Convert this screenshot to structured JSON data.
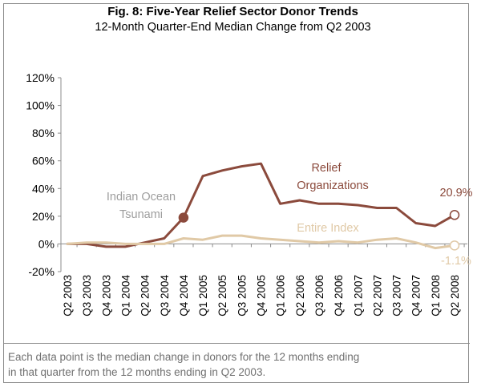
{
  "chart_data": {
    "type": "line",
    "title": "Fig. 8: Five-Year Relief Sector Donor Trends",
    "subtitle": "12-Month Quarter-End Median Change from Q2 2003",
    "x": [
      "Q2 2003",
      "Q3 2003",
      "Q4 2003",
      "Q1 2004",
      "Q2 2004",
      "Q3 2004",
      "Q4 2004",
      "Q1 2005",
      "Q2 2005",
      "Q3 2005",
      "Q4 2005",
      "Q1 2006",
      "Q2 2006",
      "Q3 2006",
      "Q4 2006",
      "Q1 2007",
      "Q2 2007",
      "Q3 2007",
      "Q4 2007",
      "Q1 2008",
      "Q2 2008"
    ],
    "yticks": [
      "120%",
      "100%",
      "80%",
      "60%",
      "40%",
      "20%",
      "0%",
      "-20%"
    ],
    "ylim": [
      -20,
      120
    ],
    "series": [
      {
        "name": "Relief Organizations",
        "color": "#8b4a3c",
        "values": [
          0,
          0,
          -2,
          -2,
          1,
          4,
          19,
          49,
          53,
          56,
          58,
          29,
          31.5,
          29,
          29,
          28,
          26,
          26,
          15,
          13,
          20.9
        ]
      },
      {
        "name": "Entire Index",
        "color": "#e0c9a6",
        "values": [
          0,
          1,
          1,
          0,
          0,
          0,
          4,
          3,
          6,
          6,
          4,
          3,
          2,
          1,
          2,
          1,
          3,
          4,
          1,
          -3,
          -1.1
        ]
      }
    ],
    "annotations": {
      "tsunami_line1": "Indian Ocean",
      "tsunami_line2": "Tsunami",
      "relief_line1": "Relief",
      "relief_line2": "Organizations",
      "relief_end": "20.9%",
      "index_label": "Entire Index",
      "index_end": "-1.1%"
    },
    "annotation_colors": {
      "tsunami": "#9e9e9e",
      "relief": "#8b4a3c",
      "index": "#e0c9a6"
    }
  },
  "footnote_line1": "Each data point is the median change in donors for the 12 months ending",
  "footnote_line2": "in that quarter from the 12 months ending in Q2 2003."
}
